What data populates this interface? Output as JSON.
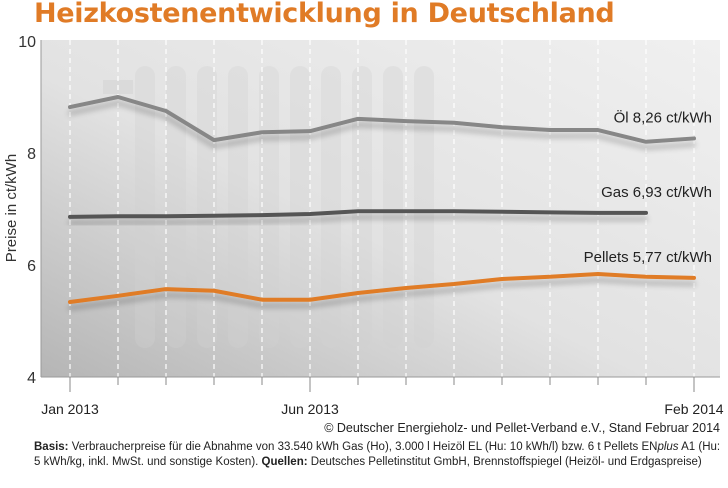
{
  "chart_data": {
    "type": "line",
    "title": "Heizkostenentwicklung in Deutschland",
    "xlabel": "",
    "ylabel": "Preise in ct/kWh",
    "ylim": [
      4,
      10
    ],
    "yticks": [
      4,
      6,
      8,
      10
    ],
    "grid": "vertical dashed",
    "x": [
      "Jan 2013",
      "Feb 2013",
      "Mar 2013",
      "Apr 2013",
      "May 2013",
      "Jun 2013",
      "Jul 2013",
      "Aug 2013",
      "Sep 2013",
      "Oct 2013",
      "Nov 2013",
      "Dec 2013",
      "Jan 2014",
      "Feb 2014"
    ],
    "xtick_labels": [
      {
        "index": 0,
        "label": "Jan 2013"
      },
      {
        "index": 5,
        "label": "Jun 2013"
      },
      {
        "index": 13,
        "label": "Feb 2014"
      }
    ],
    "series": [
      {
        "name": "Öl",
        "label": "Öl  8,26 ct/kWh",
        "color": "#878787",
        "values": [
          8.82,
          9.0,
          8.75,
          8.23,
          8.37,
          8.39,
          8.61,
          8.57,
          8.54,
          8.46,
          8.41,
          8.41,
          8.2,
          8.26
        ]
      },
      {
        "name": "Gas",
        "label": "Gas  6,93 ct/kWh",
        "color": "#555555",
        "values": [
          6.86,
          6.87,
          6.87,
          6.88,
          6.89,
          6.91,
          6.96,
          6.96,
          6.96,
          6.95,
          6.94,
          6.93,
          6.93,
          null
        ]
      },
      {
        "name": "Pellets",
        "label": "Pellets  5,77 ct/kWh",
        "color": "#e07b26",
        "values": [
          5.34,
          5.45,
          5.57,
          5.54,
          5.38,
          5.38,
          5.5,
          5.59,
          5.66,
          5.75,
          5.79,
          5.84,
          5.79,
          5.77
        ]
      }
    ],
    "legend": "inline labels at line ends (right)"
  },
  "credit": "© Deutscher Energieholz- und Pellet-Verband e.V., Stand Februar 2014",
  "footnote": {
    "basis_label": "Basis:",
    "basis_text_1": " Verbraucherpreise für die Abnahme von 33.540 kWh Gas (Ho), 3.000 l Heizöl EL (Hu: 10 kWh/l) bzw. 6 t Pellets EN",
    "basis_italic": "plus",
    "basis_text_2": " A1 (Hu: 5 kWh/kg, inkl. MwSt. und sonstige Kosten). ",
    "sources_label": "Quellen:",
    "sources_text": " Deutsches Pelletinstitut GmbH, Brennstoffspiegel (Heizöl- und Erdgaspreise)"
  }
}
